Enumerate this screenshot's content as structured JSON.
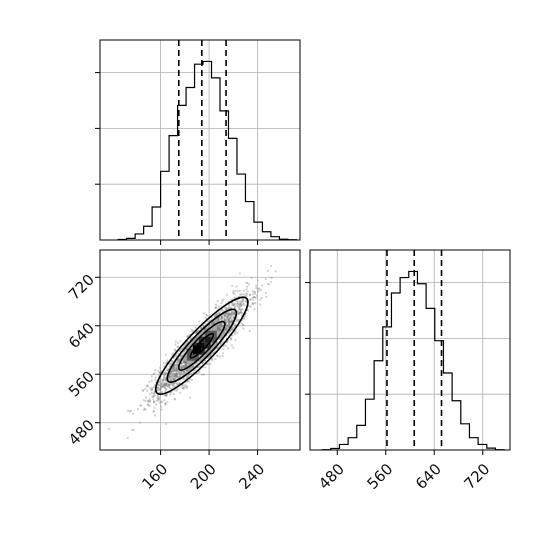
{
  "chart_data": {
    "type": "corner",
    "grid": true,
    "colors": {
      "line": "#000000",
      "grid": "#b0b0b0",
      "scatter": "#7a7a7a",
      "background": "#ffffff"
    },
    "parameters": [
      {
        "index": 0,
        "range": [
          110,
          275
        ],
        "ticks": [
          160,
          200,
          240
        ],
        "tick_labels": [
          "160",
          "200",
          "240"
        ],
        "quantiles": [
          175,
          194,
          214
        ]
      },
      {
        "index": 1,
        "range": [
          435,
          765
        ],
        "ticks": [
          480,
          560,
          640,
          720
        ],
        "tick_labels": [
          "480",
          "560",
          "640",
          "720"
        ],
        "quantiles": [
          562,
          607,
          652
        ]
      }
    ],
    "histograms": [
      {
        "param": 0,
        "bin_start": 125,
        "bin_width": 7,
        "counts": [
          2,
          6,
          22,
          50,
          120,
          250,
          380,
          490,
          555,
          640,
          650,
          590,
          470,
          370,
          240,
          140,
          65,
          30,
          12,
          3,
          1
        ]
      },
      {
        "param": 1,
        "bin_start": 455,
        "bin_width": 14.3,
        "counts": [
          1,
          5,
          18,
          40,
          80,
          165,
          290,
          400,
          510,
          560,
          580,
          540,
          460,
          355,
          250,
          160,
          85,
          40,
          18,
          6,
          1
        ]
      }
    ],
    "scatter_2d": {
      "x_param": 0,
      "y_param": 1,
      "mean": [
        194,
        607
      ],
      "std": [
        19,
        40
      ],
      "correlation": 0.9,
      "n_points": 2500,
      "density_peak": [
        190,
        601
      ],
      "contour_levels": [
        0.5,
        1.0,
        1.5,
        2.0
      ]
    }
  }
}
